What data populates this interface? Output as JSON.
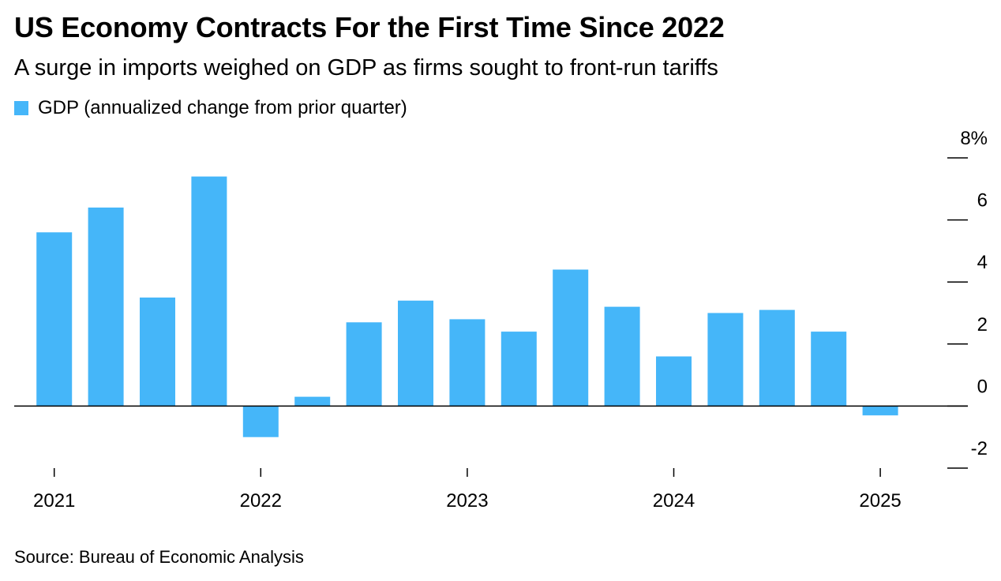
{
  "title": "US Economy Contracts For the First Time Since 2022",
  "subtitle": "A surge in imports weighed on GDP as firms sought to front-run tariffs",
  "source": "Source: Bureau of Economic Analysis",
  "colors": {
    "bar": "#45b6f9",
    "axis": "#000000",
    "text": "#000000"
  },
  "chart_data": {
    "type": "bar",
    "title": "US Economy Contracts For the First Time Since 2022",
    "subtitle": "A surge in imports weighed on GDP as firms sought to front-run tariffs",
    "categories": [
      "2021 Q1",
      "2021 Q2",
      "2021 Q3",
      "2021 Q4",
      "2022 Q1",
      "2022 Q2",
      "2022 Q3",
      "2022 Q4",
      "2023 Q1",
      "2023 Q2",
      "2023 Q3",
      "2023 Q4",
      "2024 Q1",
      "2024 Q2",
      "2024 Q3",
      "2024 Q4",
      "2025 Q1"
    ],
    "series": [
      {
        "name": "GDP (annualized change from prior quarter)",
        "values": [
          5.6,
          6.4,
          3.5,
          7.4,
          -1.0,
          0.3,
          2.7,
          3.4,
          2.8,
          2.4,
          4.4,
          3.2,
          1.6,
          3.0,
          3.1,
          2.4,
          -0.3
        ]
      }
    ],
    "xtick_labels": [
      "2021",
      "2022",
      "2023",
      "2024",
      "2025"
    ],
    "ytick_values": [
      -2,
      0,
      2,
      4,
      6,
      8
    ],
    "ytick_labels": [
      "-2",
      "0",
      "2",
      "4",
      "6",
      "8%"
    ],
    "ylim": [
      -2,
      8
    ],
    "y_axis_side": "right",
    "grid": false,
    "legend_position": "top-left"
  }
}
